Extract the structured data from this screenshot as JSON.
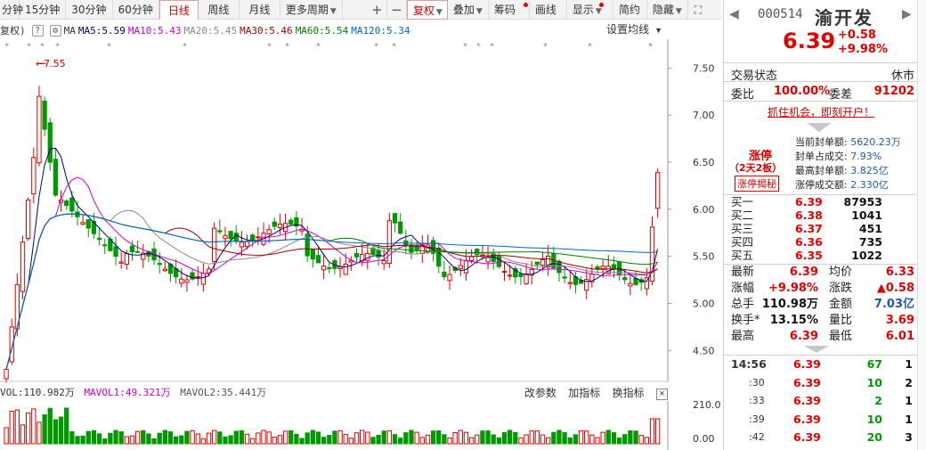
{
  "toolbar": {
    "items": [
      "分钟",
      "15分钟",
      "30分钟",
      "60分钟",
      "日线",
      "周线",
      "月线",
      "更多周期"
    ],
    "active": "日线",
    "plus": "+",
    "minus": "−",
    "fuquan": "复权",
    "overlay": "叠加",
    "chips": "筹码",
    "draw": "画线",
    "display": "显示",
    "simple": "简约",
    "hide": "隐藏"
  },
  "ma_legend": {
    "prefix": "复权)",
    "ma": "MA",
    "ma5": "MA5:5.59",
    "ma10": "MA10:5.43",
    "ma20": "MA20:5.45",
    "ma30": "MA30:5.46",
    "ma60": "MA60:5.54",
    "ma120": "MA120:5.34",
    "settings": "设置均线"
  },
  "colors": {
    "up": "#e00000",
    "down": "#009900",
    "ma5": "#000080",
    "ma10": "#cc00cc",
    "ma20": "#888888",
    "ma30": "#990000",
    "ma60": "#008000",
    "ma120": "#0066cc"
  },
  "chart_data": {
    "type": "candlestick",
    "y_ticks": [
      "7.50",
      "7.00",
      "6.50",
      "6.00",
      "5.50",
      "5.00",
      "4.50"
    ],
    "ylim": [
      4.2,
      7.75
    ],
    "high_marker": "7.55",
    "volume_ticks": [
      "210.00",
      "0.00"
    ]
  },
  "volume": {
    "vol": "VOL:110.982万",
    "mavol1": "MAVOL1:49.321万",
    "mavol2": "MAVOL2:35.441万",
    "btn_params": "改参数",
    "btn_add": "加指标",
    "btn_change": "换指标",
    "close": "×"
  },
  "stock": {
    "code": "000514",
    "name": "渝开发",
    "price": "6.39",
    "change": "+0.58",
    "change_pct": "+9.98%"
  },
  "status": {
    "label": "交易状态",
    "value": "休市"
  },
  "weibi": {
    "label1": "委比",
    "value1": "100.00%",
    "label2": "委差",
    "value2": "91202"
  },
  "ad": "抓住机会，即刻开户！",
  "limit": {
    "title": "涨停",
    "days": "（2天2板）",
    "reveal": "涨停揭秘",
    "rows": [
      {
        "label": "当前封单额:",
        "value": "5620.23万"
      },
      {
        "label": "封单占成交:",
        "value": "7.93%"
      },
      {
        "label": "最高封单额:",
        "value": "3.825亿"
      },
      {
        "label": "涨停成交额:",
        "value": "2.330亿"
      }
    ]
  },
  "bids": [
    {
      "label": "买一",
      "price": "6.39",
      "vol": "87953"
    },
    {
      "label": "买二",
      "price": "6.38",
      "vol": "1041"
    },
    {
      "label": "买三",
      "price": "6.37",
      "vol": "451"
    },
    {
      "label": "买四",
      "price": "6.36",
      "vol": "735"
    },
    {
      "label": "买五",
      "price": "6.35",
      "vol": "1022"
    }
  ],
  "stats": [
    {
      "l1": "最新",
      "v1": "6.39",
      "l2": "均价",
      "v2": "6.33"
    },
    {
      "l1": "涨幅",
      "v1": "+9.98%",
      "l2": "涨跌",
      "v2": "▲0.58"
    },
    {
      "l1": "总手",
      "v1": "110.98万",
      "l2": "金额",
      "v2": "7.03亿"
    },
    {
      "l1": "换手*",
      "v1": "13.15%",
      "l2": "量比",
      "v2": "3.69"
    },
    {
      "l1": "最高",
      "v1": "6.39",
      "l2": "最低",
      "v2": "6.01"
    }
  ],
  "ticks": [
    {
      "time": "14:56",
      "price": "6.39",
      "vol": "67",
      "n": "1"
    },
    {
      "time": ":30",
      "price": "6.39",
      "vol": "10",
      "n": "2"
    },
    {
      "time": ":33",
      "price": "6.39",
      "vol": "2",
      "n": "1"
    },
    {
      "time": ":39",
      "price": "6.39",
      "vol": "10",
      "n": "1"
    },
    {
      "time": ":42",
      "price": "6.39",
      "vol": "20",
      "n": "3"
    }
  ]
}
